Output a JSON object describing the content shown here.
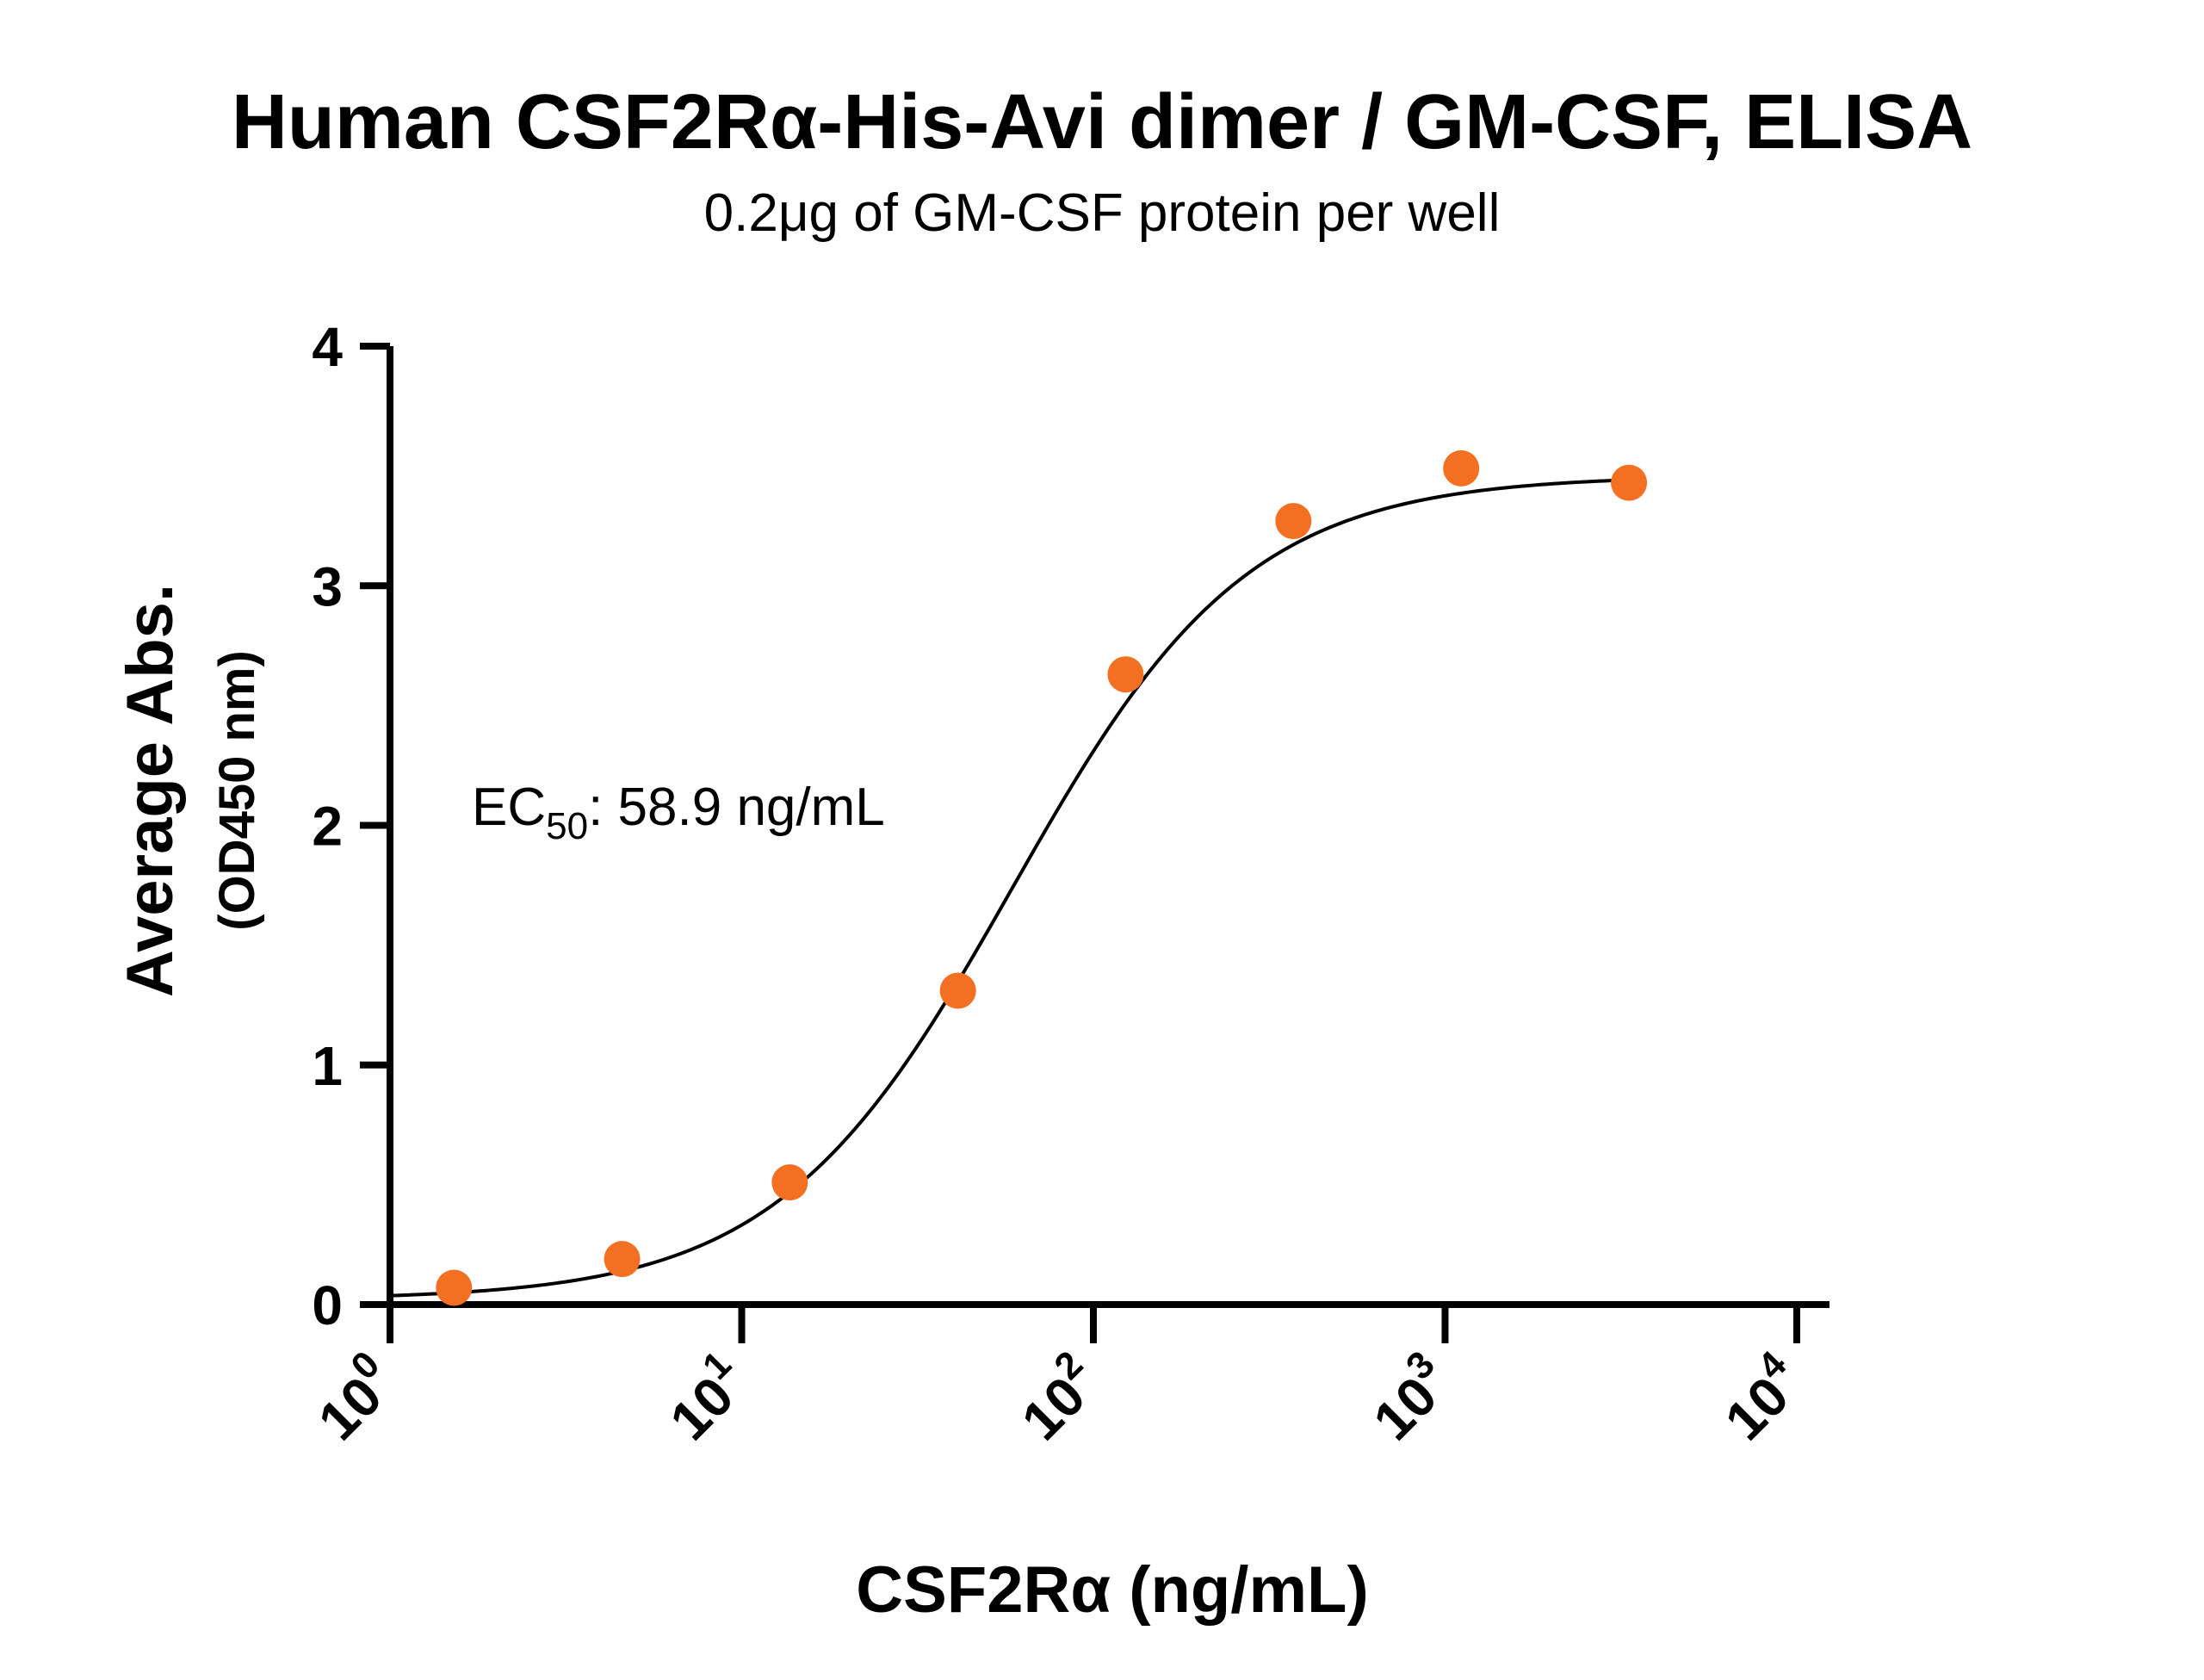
{
  "chart_data": {
    "type": "scatter",
    "title": "Human CSF2Rα-His-Avi dimer / GM-CSF, ELISA",
    "subtitle": "0.2μg of GM-CSF protein per well",
    "xlabel": "CSF2Rα (ng/mL)",
    "ylabel": "Average Abs.",
    "ylabel_unit": "(OD450 nm)",
    "x_scale": "log",
    "xlim": [
      1,
      10000
    ],
    "ylim": [
      0,
      4
    ],
    "x_ticks": [
      {
        "base": "10",
        "exp": "0"
      },
      {
        "base": "10",
        "exp": "1"
      },
      {
        "base": "10",
        "exp": "2"
      },
      {
        "base": "10",
        "exp": "3"
      },
      {
        "base": "10",
        "exp": "4"
      }
    ],
    "y_ticks": [
      "0",
      "1",
      "2",
      "3",
      "4"
    ],
    "grid": false,
    "legend": "none",
    "annotation": {
      "prefix": "EC",
      "subscript": "50",
      "suffix": ": 58.9 ng/mL"
    },
    "marker_color": "#F36F21",
    "curve_color": "#000000",
    "points": [
      {
        "x": 1.52,
        "y": 0.07
      },
      {
        "x": 4.57,
        "y": 0.19
      },
      {
        "x": 13.7,
        "y": 0.51
      },
      {
        "x": 41.2,
        "y": 1.31
      },
      {
        "x": 123.5,
        "y": 2.63
      },
      {
        "x": 370.4,
        "y": 3.27
      },
      {
        "x": 1111,
        "y": 3.49
      },
      {
        "x": 3333,
        "y": 3.43
      }
    ],
    "fit": {
      "model": "4PL",
      "bottom": 0.02,
      "top": 3.46,
      "ec50": 58.9,
      "hill": 1.3
    }
  }
}
